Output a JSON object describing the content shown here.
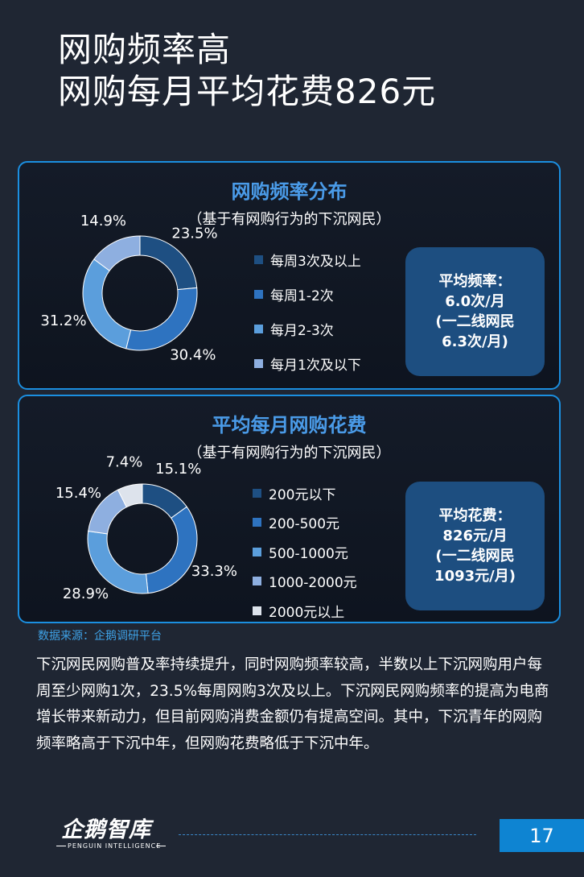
{
  "title": {
    "line1": "网购频率高",
    "line2": "网购每月平均花费826元"
  },
  "colors": {
    "panel_border": "#1b8fe0",
    "panel_title": "#4a9be8",
    "stat_box": "#1d4e80",
    "page_num_bg": "#0e84d2"
  },
  "chart_data": [
    {
      "type": "pie",
      "donut": true,
      "title": "网购频率分布",
      "subtitle": "（基于有网购行为的下沉网民）",
      "categories": [
        "每周3次及以上",
        "每周1-2次",
        "每月2-3次",
        "每月1次及以下"
      ],
      "values": [
        23.5,
        30.4,
        31.2,
        14.9
      ],
      "labels": [
        "23.5%",
        "30.4%",
        "31.2%",
        "14.9%"
      ],
      "colors": [
        "#1e4f82",
        "#2e73c0",
        "#5b9edc",
        "#8eafe0"
      ],
      "legend": "right"
    },
    {
      "type": "pie",
      "donut": true,
      "title": "平均每月网购花费",
      "subtitle": "（基于有网购行为的下沉网民）",
      "categories": [
        "200元以下",
        "200-500元",
        "500-1000元",
        "1000-2000元",
        "2000元以上"
      ],
      "values": [
        15.1,
        33.3,
        28.9,
        15.4,
        7.4
      ],
      "labels": [
        "15.1%",
        "33.3%",
        "28.9%",
        "15.4%",
        "7.4%"
      ],
      "colors": [
        "#1e4f82",
        "#2e73c0",
        "#5b9edc",
        "#8eafe0",
        "#dde3ec"
      ],
      "legend": "right"
    }
  ],
  "stat1": {
    "line1": "平均频率：",
    "line2": "6.0次/月",
    "line3": "(一二线网民",
    "line4": "6.3次/月)"
  },
  "stat2": {
    "line1": "平均花费：",
    "line2": "826元/月",
    "line3": "(一二线网民",
    "line4": "1093元/月)"
  },
  "source": "数据来源：企鹅调研平台",
  "body": "下沉网民网购普及率持续提升，同时网购频率较高，半数以上下沉网购用户每周至少网购1次，23.5%每周网购3次及以上。下沉网民网购频率的提高为电商增长带来新动力，但目前网购消费金额仍有提高空间。其中，下沉青年的网购频率略高于下沉中年，但网购花费略低于下沉中年。",
  "logo": {
    "cn": "企鹅智库",
    "en": "PENGUIN INTELLIGENCE"
  },
  "page_number": "17"
}
